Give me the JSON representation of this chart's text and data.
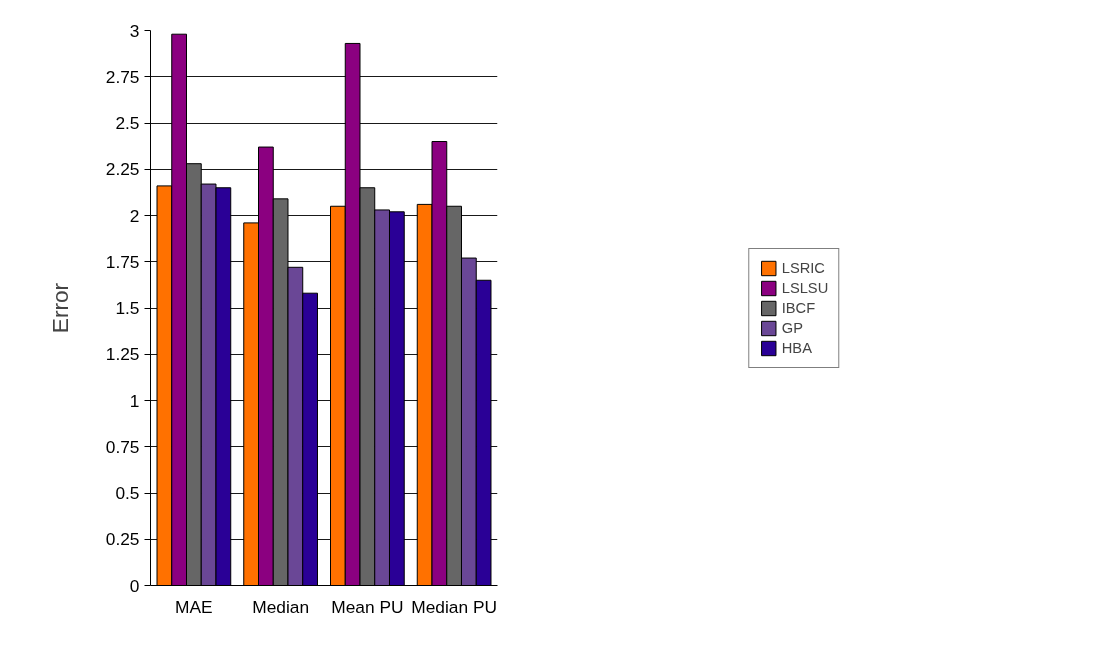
{
  "chart_data": {
    "type": "bar",
    "ylabel": "Error",
    "categories": [
      "MAE",
      "Median",
      "Mean PU",
      "Median PU"
    ],
    "series": [
      {
        "name": "LSRIC",
        "color": "#ff7100",
        "values": [
          2.16,
          1.96,
          2.05,
          2.06
        ]
      },
      {
        "name": "LSLSU",
        "color": "#8b0080",
        "values": [
          2.98,
          2.37,
          2.93,
          2.4
        ]
      },
      {
        "name": "IBCF",
        "color": "#666666",
        "values": [
          2.28,
          2.09,
          2.15,
          2.05
        ]
      },
      {
        "name": "GP",
        "color": "#6a4796",
        "values": [
          2.17,
          1.72,
          2.03,
          1.77
        ]
      },
      {
        "name": "HBA",
        "color": "#2a0096",
        "values": [
          2.15,
          1.58,
          2.02,
          1.65
        ]
      }
    ],
    "ylim": [
      0,
      3
    ],
    "yticks": [
      0,
      0.25,
      0.5,
      0.75,
      1,
      1.25,
      1.5,
      1.75,
      2,
      2.25,
      2.5,
      2.75,
      3
    ],
    "grid": "y",
    "legend": "right"
  }
}
